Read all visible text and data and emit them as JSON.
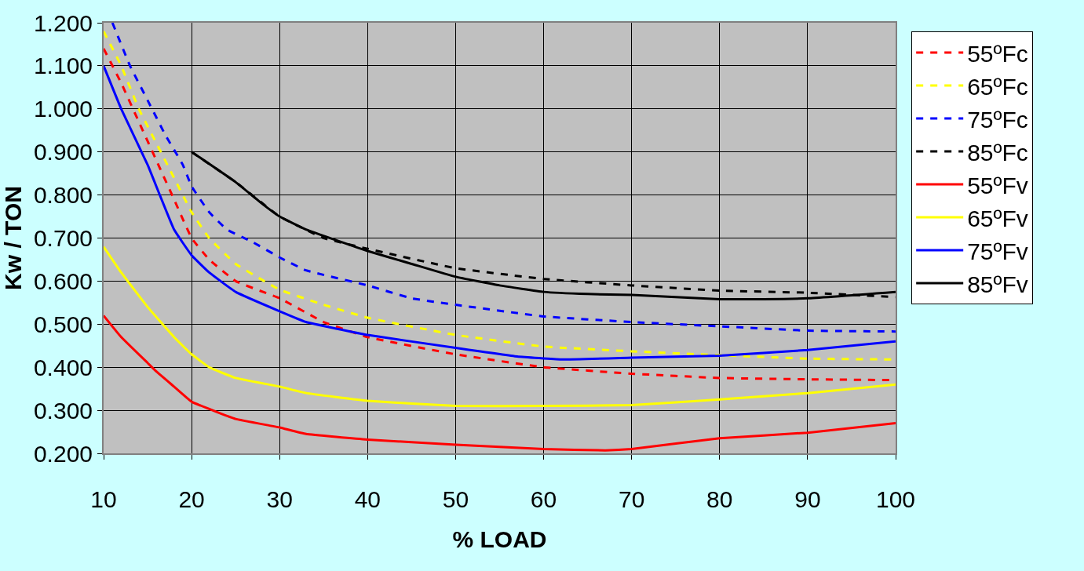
{
  "chart_data": {
    "type": "line",
    "xlabel": "% LOAD",
    "ylabel": "Kw / TON",
    "xlim": [
      10,
      100
    ],
    "xticks": [
      10,
      20,
      30,
      40,
      50,
      60,
      70,
      80,
      90,
      100
    ],
    "ylim": [
      0.2,
      1.2
    ],
    "yticks": [
      {
        "value": 0.2,
        "label": "0.200"
      },
      {
        "value": 0.3,
        "label": "0.300"
      },
      {
        "value": 0.4,
        "label": "0.400"
      },
      {
        "value": 0.5,
        "label": "0.500"
      },
      {
        "value": 0.6,
        "label": "0.600"
      },
      {
        "value": 0.7,
        "label": "0.700"
      },
      {
        "value": 0.8,
        "label": "0.800"
      },
      {
        "value": 0.9,
        "label": "0.900"
      },
      {
        "value": 1.0,
        "label": "1.000"
      },
      {
        "value": 1.1,
        "label": "1.100"
      },
      {
        "value": 1.2,
        "label": "1.200"
      }
    ],
    "grid": true,
    "legend": "right",
    "marker": "none",
    "series": [
      {
        "name": "55ºFc",
        "color": "#ff0000",
        "line_style": "dashed",
        "x": [
          10,
          12,
          14,
          16,
          18,
          20,
          22,
          25,
          30,
          35,
          40,
          50,
          60,
          70,
          80,
          90,
          100
        ],
        "values": [
          1.14,
          1.06,
          0.97,
          0.88,
          0.79,
          0.7,
          0.65,
          0.6,
          0.56,
          0.505,
          0.47,
          0.43,
          0.4,
          0.385,
          0.375,
          0.372,
          0.37
        ]
      },
      {
        "name": "65ºFc",
        "color": "#ffff00",
        "line_style": "dashed",
        "x": [
          10,
          12,
          14,
          16,
          18,
          20,
          22,
          25,
          30,
          35,
          40,
          50,
          60,
          70,
          80,
          90,
          100
        ],
        "values": [
          1.18,
          1.1,
          1.0,
          0.92,
          0.84,
          0.76,
          0.7,
          0.64,
          0.58,
          0.545,
          0.515,
          0.475,
          0.448,
          0.437,
          0.428,
          0.42,
          0.418
        ]
      },
      {
        "name": "75ºFc",
        "color": "#0000ff",
        "line_style": "dashed",
        "x": [
          11,
          13,
          15,
          17,
          19,
          20,
          22,
          24,
          27,
          30,
          33,
          40,
          45,
          50,
          60,
          70,
          80,
          90,
          100
        ],
        "values": [
          1.2,
          1.1,
          1.02,
          0.94,
          0.87,
          0.82,
          0.76,
          0.72,
          0.69,
          0.655,
          0.625,
          0.59,
          0.56,
          0.545,
          0.518,
          0.505,
          0.495,
          0.485,
          0.483
        ]
      },
      {
        "name": "85ºFc",
        "color": "#000000",
        "line_style": "dashed",
        "x": [
          20,
          25,
          30,
          35,
          40,
          50,
          60,
          70,
          80,
          90,
          100
        ],
        "values": [
          0.9,
          0.83,
          0.75,
          0.7,
          0.675,
          0.63,
          0.605,
          0.59,
          0.578,
          0.573,
          0.563
        ]
      },
      {
        "name": "55ºFv",
        "color": "#ff0000",
        "line_style": "solid",
        "x": [
          10,
          12,
          15,
          16,
          18,
          20,
          23,
          25,
          30,
          33,
          40,
          50,
          60,
          67,
          70,
          80,
          90,
          100
        ],
        "values": [
          0.52,
          0.47,
          0.41,
          0.39,
          0.355,
          0.32,
          0.295,
          0.28,
          0.26,
          0.245,
          0.232,
          0.22,
          0.21,
          0.207,
          0.21,
          0.235,
          0.248,
          0.27
        ]
      },
      {
        "name": "65ºFv",
        "color": "#ffff00",
        "line_style": "solid",
        "x": [
          10,
          12,
          15,
          18,
          20,
          22,
          25,
          30,
          33,
          40,
          50,
          60,
          70,
          80,
          90,
          100
        ],
        "values": [
          0.68,
          0.62,
          0.54,
          0.47,
          0.43,
          0.4,
          0.375,
          0.355,
          0.34,
          0.322,
          0.31,
          0.31,
          0.312,
          0.325,
          0.34,
          0.36
        ]
      },
      {
        "name": "75ºFv",
        "color": "#0000ff",
        "line_style": "solid",
        "x": [
          10,
          12,
          15,
          18,
          20,
          22,
          25,
          30,
          33,
          40,
          50,
          57,
          62,
          70,
          80,
          90,
          100
        ],
        "values": [
          1.1,
          1.0,
          0.87,
          0.72,
          0.66,
          0.62,
          0.575,
          0.53,
          0.505,
          0.475,
          0.445,
          0.425,
          0.418,
          0.422,
          0.427,
          0.44,
          0.46
        ]
      },
      {
        "name": "85ºFv",
        "color": "#000000",
        "line_style": "solid",
        "x": [
          20,
          25,
          28,
          30,
          33,
          40,
          45,
          50,
          55,
          60,
          65,
          70,
          80,
          85,
          90,
          100
        ],
        "values": [
          0.9,
          0.83,
          0.78,
          0.75,
          0.72,
          0.67,
          0.64,
          0.61,
          0.59,
          0.575,
          0.57,
          0.568,
          0.558,
          0.558,
          0.56,
          0.575
        ]
      }
    ]
  }
}
